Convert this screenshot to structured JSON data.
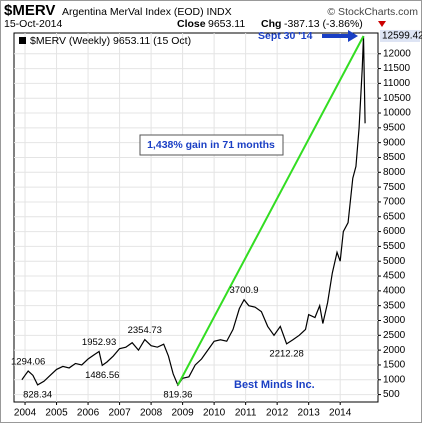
{
  "header": {
    "symbol": "$MERV",
    "name": "Argentina MerVal Index (EOD) INDX",
    "date": "15-Oct-2014",
    "close_label": "Close",
    "close": 9653.11,
    "change_label": "Chg",
    "change": "-387.13 (-3.86%)",
    "source": "© StockCharts.com"
  },
  "chart_data": {
    "type": "line",
    "x": [
      2003.9,
      2004.0,
      2004.1,
      2004.25,
      2004.4,
      2004.6,
      2004.8,
      2005.0,
      2005.2,
      2005.4,
      2005.6,
      2005.8,
      2006.0,
      2006.2,
      2006.35,
      2006.45,
      2006.6,
      2006.8,
      2007.0,
      2007.2,
      2007.4,
      2007.6,
      2007.8,
      2008.0,
      2008.2,
      2008.4,
      2008.55,
      2008.7,
      2008.85,
      2009.0,
      2009.2,
      2009.4,
      2009.6,
      2009.8,
      2010.0,
      2010.2,
      2010.4,
      2010.6,
      2010.8,
      2010.95,
      2011.1,
      2011.3,
      2011.5,
      2011.7,
      2011.9,
      2012.1,
      2012.3,
      2012.5,
      2012.7,
      2012.9,
      2013.0,
      2013.2,
      2013.35,
      2013.45,
      2013.6,
      2013.75,
      2013.9,
      2014.0,
      2014.1,
      2014.25,
      2014.4,
      2014.5,
      2014.6,
      2014.7,
      2014.74,
      2014.79
    ],
    "series": [
      {
        "name": "$MERV (Weekly) 9653.11 (15 Oct)",
        "color": "#000000",
        "values": [
          1000,
          1150,
          1294.06,
          1150,
          828.34,
          950,
          1150,
          1350,
          1450,
          1400,
          1550,
          1500,
          1700,
          1850,
          1952.93,
          1486.56,
          1600,
          1800,
          2050,
          2100,
          2250,
          2000,
          2354.73,
          2150,
          2100,
          2200,
          1800,
          1200,
          819.36,
          1050,
          1100,
          1500,
          1700,
          2000,
          2300,
          2350,
          2300,
          2700,
          3400,
          3700.9,
          3500,
          3450,
          3300,
          2800,
          2500,
          2800,
          2212.28,
          2350,
          2500,
          2700,
          3200,
          3100,
          3500,
          2900,
          3600,
          4600,
          5300,
          5000,
          6000,
          6300,
          7800,
          8200,
          9500,
          11500,
          12599.42,
          9653.11
        ]
      }
    ],
    "labeled_points": [
      {
        "x": 2004.1,
        "value": 1294.06
      },
      {
        "x": 2004.4,
        "value": 828.34
      },
      {
        "x": 2006.35,
        "value": 1952.93
      },
      {
        "x": 2006.45,
        "value": 1486.56
      },
      {
        "x": 2007.8,
        "value": 2354.73
      },
      {
        "x": 2008.85,
        "value": 819.36
      },
      {
        "x": 2010.95,
        "value": 3700.9
      },
      {
        "x": 2012.3,
        "value": 2212.28
      }
    ],
    "trend_line": {
      "x": [
        2008.85,
        2014.74
      ],
      "values": [
        819.36,
        12599.42
      ],
      "color": "#33dd22"
    },
    "annotations": {
      "gain": "1,438% gain in 71 months",
      "peak_date": "Sept 30 '14",
      "author": "Best Minds Inc."
    },
    "xlim": [
      2003.65,
      2015.2
    ],
    "xticks": [
      2004,
      2005,
      2006,
      2007,
      2008,
      2009,
      2010,
      2011,
      2012,
      2013,
      2014
    ],
    "ylim": [
      250,
      12700
    ],
    "yticks": [
      500,
      1000,
      1500,
      2000,
      2500,
      3000,
      3500,
      4000,
      4500,
      5000,
      5500,
      6000,
      6500,
      7000,
      7500,
      8000,
      8500,
      9000,
      9500,
      10000,
      10500,
      11000,
      11500,
      12000
    ],
    "grid": true
  }
}
